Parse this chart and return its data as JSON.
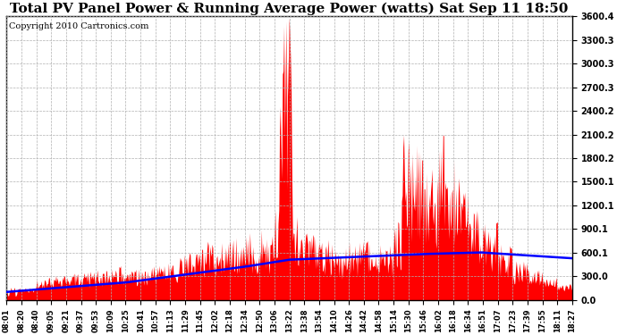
{
  "title": "Total PV Panel Power & Running Average Power (watts) Sat Sep 11 18:50",
  "copyright": "Copyright 2010 Cartronics.com",
  "ylim": [
    0,
    3600.4
  ],
  "yticks": [
    0.0,
    300.0,
    600.1,
    900.1,
    1200.1,
    1500.1,
    1800.2,
    2100.2,
    2400.2,
    2700.3,
    3000.3,
    3300.3,
    3600.4
  ],
  "ytick_labels": [
    "0.0",
    "300.0",
    "600.1",
    "900.1",
    "1200.1",
    "1500.1",
    "1800.2",
    "2100.2",
    "2400.2",
    "2700.3",
    "3000.3",
    "3300.3",
    "3600.4"
  ],
  "x_labels": [
    "08:01",
    "08:20",
    "08:40",
    "09:05",
    "09:21",
    "09:37",
    "09:53",
    "10:09",
    "10:25",
    "10:41",
    "10:57",
    "11:13",
    "11:29",
    "11:45",
    "12:02",
    "12:18",
    "12:34",
    "12:50",
    "13:06",
    "13:22",
    "13:38",
    "13:54",
    "14:10",
    "14:26",
    "14:42",
    "14:58",
    "15:14",
    "15:30",
    "15:46",
    "16:02",
    "16:18",
    "16:34",
    "16:51",
    "17:07",
    "17:23",
    "17:39",
    "17:55",
    "18:11",
    "18:27"
  ],
  "background_color": "#ffffff",
  "grid_color": "#b0b0b0",
  "fill_color": "#ff0000",
  "line_color": "#0000ff",
  "title_fontsize": 11,
  "copyright_fontsize": 7,
  "n_dense": 780
}
